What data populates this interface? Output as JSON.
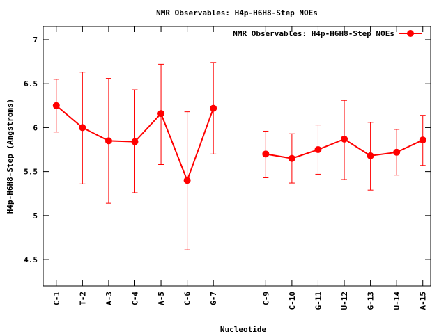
{
  "chart_data": {
    "type": "line",
    "title": "NMR Observables: H4p-H6H8-Step NOEs",
    "xlabel": "Nucleotide",
    "ylabel": "H4p-H6H8-Step (Angstroms)",
    "ylim": [
      4.2,
      7.15
    ],
    "yticks": [
      "4.5",
      "5",
      "5.5",
      "6",
      "6.5",
      "7"
    ],
    "xlim": [
      0.5,
      15.3
    ],
    "legend": {
      "label": "NMR Observables: H4p-H6H8-Step NOEs",
      "position": "top-right"
    },
    "series_color": "#ff0000",
    "categories": [
      "C-1",
      "T-2",
      "A-3",
      "C-4",
      "A-5",
      "C-6",
      "G-7",
      "C-9",
      "C-10",
      "G-11",
      "U-12",
      "G-13",
      "U-14",
      "A-15"
    ],
    "x": [
      1,
      2,
      3,
      4,
      5,
      6,
      7,
      9,
      10,
      11,
      12,
      13,
      14,
      15
    ],
    "segments": [
      [
        0,
        6
      ],
      [
        7,
        13
      ]
    ],
    "series": [
      {
        "values": [
          6.25,
          6.0,
          5.85,
          5.84,
          6.16,
          5.4,
          6.22,
          5.7,
          5.65,
          5.75,
          5.87,
          5.68,
          5.72,
          5.86
        ],
        "err_low": [
          5.95,
          5.36,
          5.14,
          5.26,
          5.58,
          4.61,
          5.7,
          5.43,
          5.37,
          5.47,
          5.41,
          5.29,
          5.46,
          5.57
        ],
        "err_high": [
          6.55,
          6.63,
          6.56,
          6.43,
          6.72,
          6.18,
          6.74,
          5.96,
          5.93,
          6.03,
          6.31,
          6.06,
          5.98,
          6.14
        ]
      }
    ]
  }
}
